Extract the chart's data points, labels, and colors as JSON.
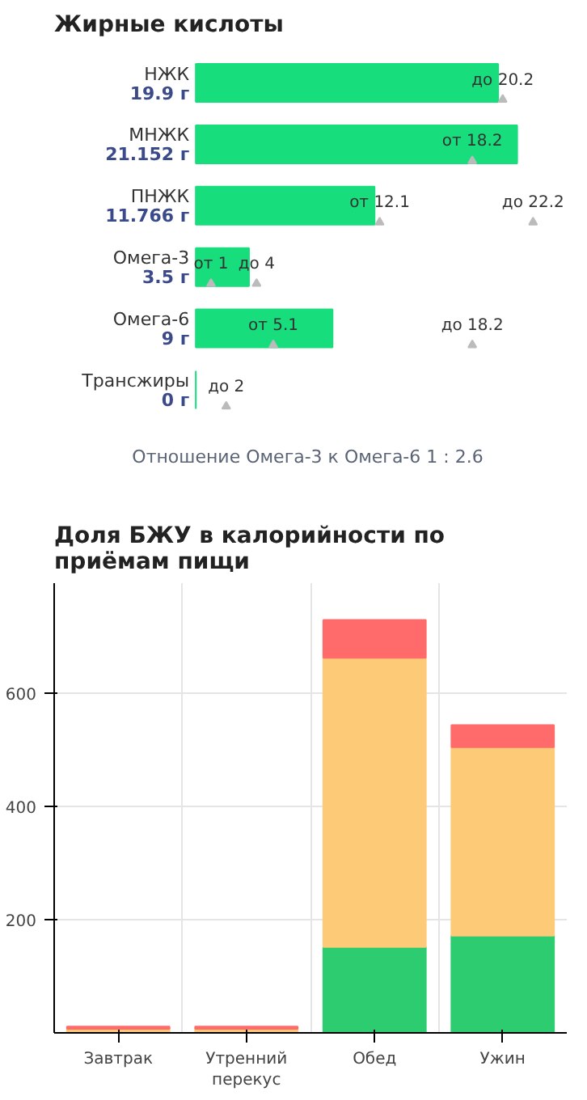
{
  "chart_data": [
    {
      "type": "bar",
      "orientation": "horizontal",
      "title": "Жирные кислоты",
      "categories": [
        "НЖК",
        "МНЖК",
        "ПНЖК",
        "Омега-3",
        "Омега-6",
        "Трансжиры"
      ],
      "series": [
        {
          "type": "bar",
          "color": "#18dd7c",
          "values": [
            19.9,
            21.152,
            11.766,
            3.5,
            9,
            0
          ],
          "value_labels": [
            "19.9 г",
            "21.152 г",
            "11.766 г",
            "3.5 г",
            "9 г",
            "0 г"
          ]
        },
        {
          "type": "scatter",
          "marker": "triangle",
          "color": "#bbbbbb",
          "values": [
            null,
            18.2,
            12.1,
            1,
            5.1,
            null
          ],
          "value_labels": [
            null,
            "от 18.2",
            "от 12.1",
            "от 1",
            "от 5.1",
            null
          ]
        },
        {
          "type": "scatter",
          "marker": "triangle",
          "color": "#bbbbbb",
          "values": [
            20.2,
            null,
            22.2,
            4,
            18.2,
            2
          ],
          "value_labels": [
            "до 20.2",
            null,
            "до 22.2",
            "до 4",
            "до 18.2",
            "до 2"
          ]
        }
      ],
      "annotations": [
        "Отношение Омега-3 к Омега-6  1 : 2.6"
      ]
    },
    {
      "type": "bar",
      "stacked": true,
      "title": "Доля БЖУ в калорийности по приёмам пищи",
      "categories": [
        "Завтрак",
        "Утренний перекус",
        "Обед",
        "Ужин"
      ],
      "series": [
        {
          "color": "#2ecc71",
          "values": [
            null,
            null,
            152,
            172
          ]
        },
        {
          "color": "#fdcb77",
          "values": [
            7,
            7,
            511,
            333
          ]
        },
        {
          "color": "#ff6b6b",
          "values": [
            4,
            4,
            67,
            39
          ]
        }
      ],
      "ylim": [
        0,
        795
      ],
      "yticks": [
        200,
        400,
        600
      ],
      "grid": true
    }
  ]
}
